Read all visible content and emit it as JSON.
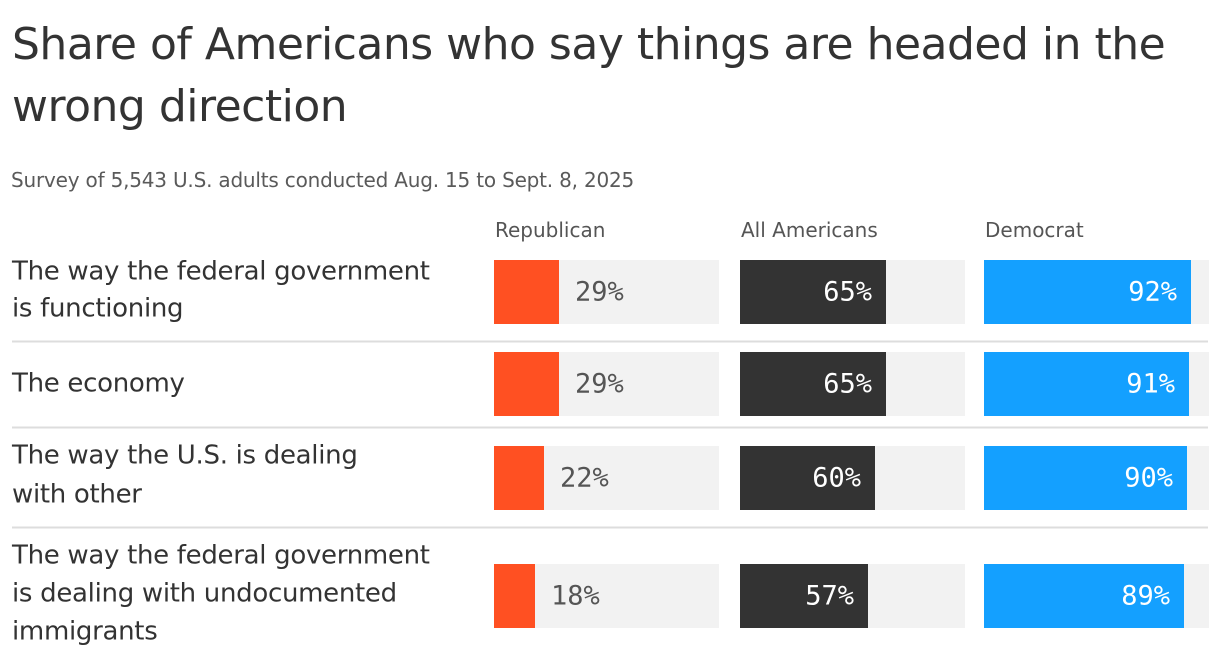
{
  "title": "Share of Americans who say things are headed in the wrong direction",
  "subtitle": "Survey of 5,543 U.S. adults conducted Aug. 15 to Sept. 8, 2025",
  "colors": {
    "republican": "#ff5022",
    "all": "#333333",
    "democrat": "#14a0ff",
    "track": "#f2f2f2",
    "divider": "#dddddd",
    "text_dark": "#555555",
    "text_light": "#ffffff"
  },
  "chart_data": {
    "type": "bar",
    "title": "Share of Americans who say things are headed in the wrong direction",
    "subtitle": "Survey of 5,543 U.S. adults conducted Aug. 15 to Sept. 8, 2025",
    "orientation": "horizontal",
    "layout": "small-multiples",
    "value_unit": "%",
    "xlim": [
      0,
      100
    ],
    "grid": false,
    "categories": [
      "The way the federal government is functioning",
      "The economy",
      "The way the U.S. is dealing with other countries",
      "The way the federal government is dealing with undocumented immigrants"
    ],
    "series": [
      {
        "name": "Republican",
        "values": [
          29,
          29,
          22,
          18
        ]
      },
      {
        "name": "All Americans",
        "values": [
          65,
          65,
          60,
          57
        ]
      },
      {
        "name": "Democrat",
        "values": [
          92,
          91,
          90,
          89
        ]
      }
    ]
  }
}
